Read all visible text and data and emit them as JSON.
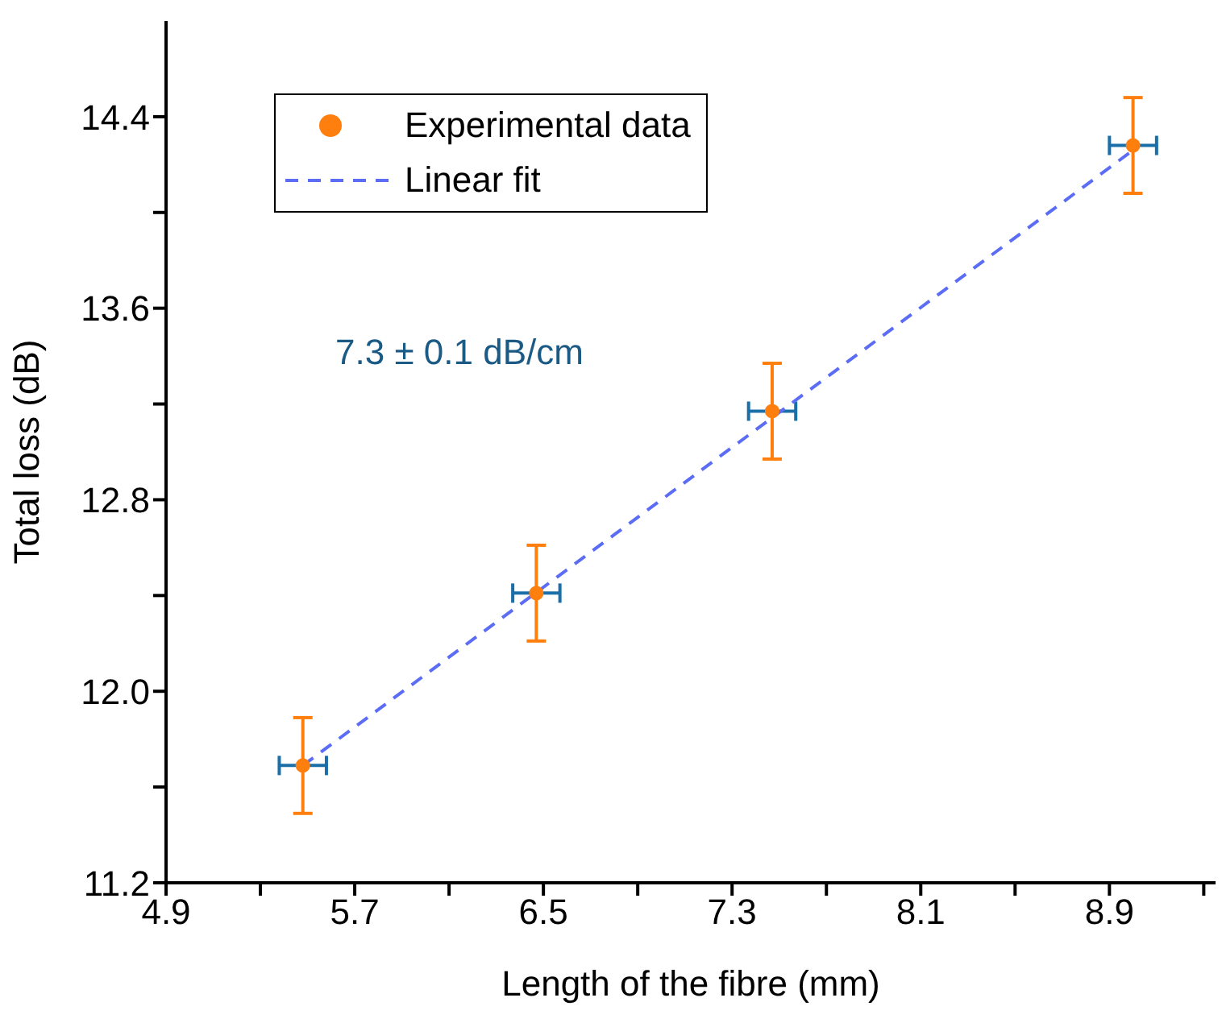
{
  "chart_data": {
    "type": "scatter",
    "xlabel": "Length of the fibre (mm)",
    "ylabel": "Total loss (dB)",
    "annotations": [
      "7.3 ± 0.1 dB/cm"
    ],
    "xlim": [
      4.9,
      9.35
    ],
    "xticks": [
      4.9,
      {
        "value": 5.3,
        "label": null
      },
      5.7,
      {
        "value": 6.1,
        "label": null
      },
      6.5,
      {
        "value": 6.9,
        "label": null
      },
      7.3,
      {
        "value": 7.7,
        "label": null
      },
      8.1,
      {
        "value": 8.5,
        "label": null
      },
      8.9,
      {
        "value": 9.3,
        "label": null
      }
    ],
    "ylim": [
      11.2,
      14.8
    ],
    "yticks": [
      {
        "value": 11.2,
        "label": "11.2"
      },
      {
        "value": 11.6,
        "label": null
      },
      {
        "value": 12.0,
        "label": "12.0"
      },
      {
        "value": 12.4,
        "label": null
      },
      12.8,
      {
        "value": 13.2,
        "label": null
      },
      13.6,
      {
        "value": 14.0,
        "label": null
      },
      14.4
    ],
    "legend": "top left",
    "series": [
      {
        "name": "Experimental data",
        "color": "#ff7f0e",
        "marker": "circle",
        "x": [
          5.48,
          6.47,
          7.47,
          9.0
        ],
        "values": [
          11.69,
          12.41,
          13.17,
          14.28
        ],
        "errors": [
          0.2,
          0.2,
          0.2,
          0.2
        ],
        "xerrors": [
          0.1,
          0.1,
          0.1,
          0.1
        ]
      },
      {
        "name": "Linear fit",
        "type": "line",
        "color": "#5b6cf5",
        "line_style": "dashed",
        "marker": "none",
        "x": [
          5.48,
          9.0
        ],
        "values": [
          11.69,
          14.26
        ]
      }
    ]
  }
}
